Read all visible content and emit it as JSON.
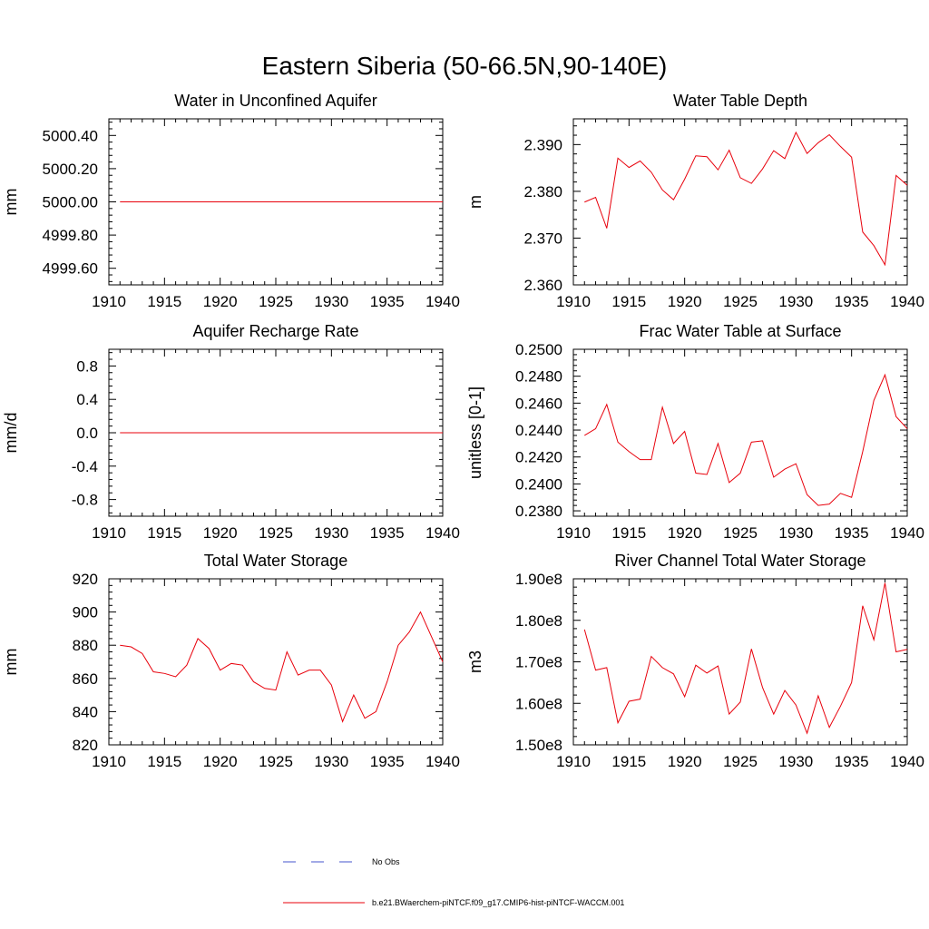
{
  "figure": {
    "title": "Eastern Siberia (50-66.5N,90-140E)"
  },
  "legend": {
    "obs_label": "No Obs",
    "model_label": "b.e21.BWaerchem-piNTCF.f09_g17.CMIP6-hist-piNTCF-WACCM.001",
    "obs_color": "#4455cc",
    "model_color": "#e8000b"
  },
  "chart_data": [
    {
      "type": "line",
      "title": "Water in Unconfined Aquifer",
      "ylabel": "mm",
      "xlim": [
        1910,
        1940
      ],
      "ylim": [
        4999.5,
        5000.5
      ],
      "xticks": [
        1910,
        1915,
        1920,
        1925,
        1930,
        1935,
        1940
      ],
      "xtick_labels": [
        "1910",
        "1915",
        "1920",
        "1925",
        "1930",
        "1935",
        "1940"
      ],
      "yticks": [
        4999.6,
        4999.8,
        5000.0,
        5000.2,
        5000.4
      ],
      "ytick_labels": [
        "4999.60",
        "4999.80",
        "5000.00",
        "5000.20",
        "5000.40"
      ],
      "series": [
        {
          "color": "#e8000b",
          "x": [
            1911,
            1912,
            1913,
            1914,
            1915,
            1916,
            1917,
            1918,
            1919,
            1920,
            1921,
            1922,
            1923,
            1924,
            1925,
            1926,
            1927,
            1928,
            1929,
            1930,
            1931,
            1932,
            1933,
            1934,
            1935,
            1936,
            1937,
            1938,
            1939,
            1940
          ],
          "y": [
            5000,
            5000,
            5000,
            5000,
            5000,
            5000,
            5000,
            5000,
            5000,
            5000,
            5000,
            5000,
            5000,
            5000,
            5000,
            5000,
            5000,
            5000,
            5000,
            5000,
            5000,
            5000,
            5000,
            5000,
            5000,
            5000,
            5000,
            5000,
            5000,
            5000
          ]
        }
      ]
    },
    {
      "type": "line",
      "title": "Water Table Depth",
      "ylabel": "m",
      "xlim": [
        1910,
        1940
      ],
      "ylim": [
        2.36,
        2.3955
      ],
      "xticks": [
        1910,
        1915,
        1920,
        1925,
        1930,
        1935,
        1940
      ],
      "xtick_labels": [
        "1910",
        "1915",
        "1920",
        "1925",
        "1930",
        "1935",
        "1940"
      ],
      "yticks": [
        2.36,
        2.37,
        2.38,
        2.39
      ],
      "ytick_labels": [
        "2.360",
        "2.370",
        "2.380",
        "2.390"
      ],
      "series": [
        {
          "color": "#e8000b",
          "x": [
            1911,
            1912,
            1913,
            1914,
            1915,
            1916,
            1917,
            1918,
            1919,
            1920,
            1921,
            1922,
            1923,
            1924,
            1925,
            1926,
            1927,
            1928,
            1929,
            1930,
            1931,
            1932,
            1933,
            1934,
            1935,
            1936,
            1937,
            1938,
            1939,
            1940
          ],
          "y": [
            2.3777,
            2.3787,
            2.3721,
            2.3871,
            2.3851,
            2.3865,
            2.3841,
            2.3803,
            2.3782,
            2.3826,
            2.3876,
            2.3874,
            2.3846,
            2.3888,
            2.3829,
            2.3817,
            2.3848,
            2.3887,
            2.387,
            2.3926,
            2.3881,
            2.3904,
            2.3921,
            2.3896,
            2.3873,
            2.3713,
            2.3684,
            2.3643,
            2.3834,
            2.3813
          ]
        }
      ]
    },
    {
      "type": "line",
      "title": "Aquifer Recharge Rate",
      "ylabel": "mm/d",
      "xlim": [
        1910,
        1940
      ],
      "ylim": [
        -1.0,
        1.0
      ],
      "xticks": [
        1910,
        1915,
        1920,
        1925,
        1930,
        1935,
        1940
      ],
      "xtick_labels": [
        "1910",
        "1915",
        "1920",
        "1925",
        "1930",
        "1935",
        "1940"
      ],
      "yticks": [
        -0.8,
        -0.4,
        0.0,
        0.4,
        0.8
      ],
      "ytick_labels": [
        "-0.8",
        "-0.4",
        "0.0",
        "0.4",
        "0.8"
      ],
      "series": [
        {
          "color": "#e8000b",
          "x": [
            1911,
            1912,
            1913,
            1914,
            1915,
            1916,
            1917,
            1918,
            1919,
            1920,
            1921,
            1922,
            1923,
            1924,
            1925,
            1926,
            1927,
            1928,
            1929,
            1930,
            1931,
            1932,
            1933,
            1934,
            1935,
            1936,
            1937,
            1938,
            1939,
            1940
          ],
          "y": [
            0,
            0,
            0,
            0,
            0,
            0,
            0,
            0,
            0,
            0,
            0,
            0,
            0,
            0,
            0,
            0,
            0,
            0,
            0,
            0,
            0,
            0,
            0,
            0,
            0,
            0,
            0,
            0,
            0,
            0
          ]
        }
      ]
    },
    {
      "type": "line",
      "title": "Frac Water Table at Surface",
      "ylabel": "unitless [0-1]",
      "xlim": [
        1910,
        1940
      ],
      "ylim": [
        0.2376,
        0.25
      ],
      "xticks": [
        1910,
        1915,
        1920,
        1925,
        1930,
        1935,
        1940
      ],
      "xtick_labels": [
        "1910",
        "1915",
        "1920",
        "1925",
        "1930",
        "1935",
        "1940"
      ],
      "yticks": [
        0.238,
        0.24,
        0.242,
        0.244,
        0.246,
        0.248,
        0.25
      ],
      "ytick_labels": [
        "0.2380",
        "0.2400",
        "0.2420",
        "0.2440",
        "0.2460",
        "0.2480",
        "0.2500"
      ],
      "series": [
        {
          "color": "#e8000b",
          "x": [
            1911,
            1912,
            1913,
            1914,
            1915,
            1916,
            1917,
            1918,
            1919,
            1920,
            1921,
            1922,
            1923,
            1924,
            1925,
            1926,
            1927,
            1928,
            1929,
            1930,
            1931,
            1932,
            1933,
            1934,
            1935,
            1936,
            1937,
            1938,
            1939,
            1940
          ],
          "y": [
            0.2436,
            0.2441,
            0.2459,
            0.2431,
            0.2424,
            0.2418,
            0.2418,
            0.2457,
            0.243,
            0.2439,
            0.2408,
            0.2407,
            0.243,
            0.2401,
            0.2408,
            0.2431,
            0.2432,
            0.2405,
            0.2411,
            0.2415,
            0.2392,
            0.2384,
            0.2385,
            0.2393,
            0.239,
            0.2424,
            0.2462,
            0.2481,
            0.245,
            0.2441
          ]
        }
      ]
    },
    {
      "type": "line",
      "title": "Total Water Storage",
      "ylabel": "mm",
      "xlim": [
        1910,
        1940
      ],
      "ylim": [
        820,
        920
      ],
      "xticks": [
        1910,
        1915,
        1920,
        1925,
        1930,
        1935,
        1940
      ],
      "xtick_labels": [
        "1910",
        "1915",
        "1920",
        "1925",
        "1930",
        "1935",
        "1940"
      ],
      "yticks": [
        820,
        840,
        860,
        880,
        900,
        920
      ],
      "ytick_labels": [
        "820",
        "840",
        "860",
        "880",
        "900",
        "920"
      ],
      "series": [
        {
          "color": "#e8000b",
          "x": [
            1911,
            1912,
            1913,
            1914,
            1915,
            1916,
            1917,
            1918,
            1919,
            1920,
            1921,
            1922,
            1923,
            1924,
            1925,
            1926,
            1927,
            1928,
            1929,
            1930,
            1931,
            1932,
            1933,
            1934,
            1935,
            1936,
            1937,
            1938,
            1939,
            1940
          ],
          "y": [
            880,
            879,
            875,
            864,
            863,
            861,
            868,
            884,
            878,
            865,
            869,
            868,
            858,
            854,
            853,
            876,
            862,
            865,
            865,
            856,
            834,
            850,
            836,
            840,
            858,
            880,
            888,
            900,
            885,
            870
          ]
        }
      ]
    },
    {
      "type": "line",
      "title": "River Channel Total Water Storage",
      "ylabel": "m3",
      "xlim": [
        1910,
        1940
      ],
      "ylim": [
        150000000,
        190000000
      ],
      "xticks": [
        1910,
        1915,
        1920,
        1925,
        1930,
        1935,
        1940
      ],
      "xtick_labels": [
        "1910",
        "1915",
        "1920",
        "1925",
        "1930",
        "1935",
        "1940"
      ],
      "yticks": [
        150000000,
        160000000,
        170000000,
        180000000,
        190000000
      ],
      "ytick_labels": [
        "1.50e8",
        "1.60e8",
        "1.70e8",
        "1.80e8",
        "1.90e8"
      ],
      "series": [
        {
          "color": "#e8000b",
          "x": [
            1911,
            1912,
            1913,
            1914,
            1915,
            1916,
            1917,
            1918,
            1919,
            1920,
            1921,
            1922,
            1923,
            1924,
            1925,
            1926,
            1927,
            1928,
            1929,
            1930,
            1931,
            1932,
            1933,
            1934,
            1935,
            1936,
            1937,
            1938,
            1939,
            1940
          ],
          "y": [
            177800000,
            168000000,
            168600000,
            155300000,
            160500000,
            161000000,
            171300000,
            168600000,
            167100000,
            161600000,
            169200000,
            167300000,
            169000000,
            157400000,
            160300000,
            173100000,
            163800000,
            157400000,
            163100000,
            159600000,
            152800000,
            161800000,
            154200000,
            159300000,
            165000000,
            183500000,
            175300000,
            189000000,
            172400000,
            173000000
          ]
        }
      ]
    }
  ]
}
